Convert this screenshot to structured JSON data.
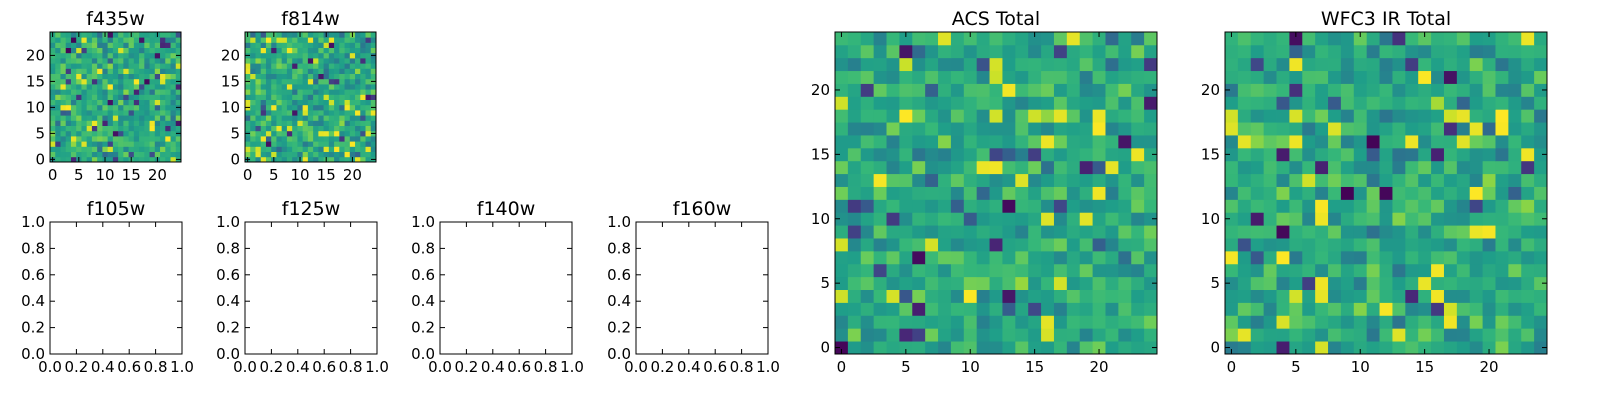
{
  "chart_data": [
    {
      "id": "f435w",
      "type": "heatmap",
      "title": "f435w",
      "size": 25,
      "xlim": [
        -0.5,
        24.5
      ],
      "ylim": [
        -0.5,
        24.5
      ],
      "xticks": [
        0,
        5,
        10,
        15,
        20
      ],
      "yticks": [
        0,
        5,
        10,
        15,
        20
      ],
      "colormap": "viridis",
      "seed": 11,
      "has_image": true
    },
    {
      "id": "f814w",
      "type": "heatmap",
      "title": "f814w",
      "size": 25,
      "xlim": [
        -0.5,
        24.5
      ],
      "ylim": [
        -0.5,
        24.5
      ],
      "xticks": [
        0,
        5,
        10,
        15,
        20
      ],
      "yticks": [
        0,
        5,
        10,
        15,
        20
      ],
      "colormap": "viridis",
      "seed": 23,
      "has_image": true
    },
    {
      "id": "f105w",
      "type": "heatmap",
      "title": "f105w",
      "xlim": [
        0,
        1
      ],
      "ylim": [
        0,
        1
      ],
      "xticks": [
        "0.0",
        "0.2",
        "0.4",
        "0.6",
        "0.8",
        "1.0"
      ],
      "yticks": [
        "0.0",
        "0.2",
        "0.4",
        "0.6",
        "0.8",
        "1.0"
      ],
      "has_image": false
    },
    {
      "id": "f125w",
      "type": "heatmap",
      "title": "f125w",
      "xlim": [
        0,
        1
      ],
      "ylim": [
        0,
        1
      ],
      "xticks": [
        "0.0",
        "0.2",
        "0.4",
        "0.6",
        "0.8",
        "1.0"
      ],
      "yticks": [
        "0.0",
        "0.2",
        "0.4",
        "0.6",
        "0.8",
        "1.0"
      ],
      "has_image": false
    },
    {
      "id": "f140w",
      "type": "heatmap",
      "title": "f140w",
      "xlim": [
        0,
        1
      ],
      "ylim": [
        0,
        1
      ],
      "xticks": [
        "0.0",
        "0.2",
        "0.4",
        "0.6",
        "0.8",
        "1.0"
      ],
      "yticks": [
        "0.0",
        "0.2",
        "0.4",
        "0.6",
        "0.8",
        "1.0"
      ],
      "has_image": false
    },
    {
      "id": "f160w",
      "type": "heatmap",
      "title": "f160w",
      "xlim": [
        0,
        1
      ],
      "ylim": [
        0,
        1
      ],
      "xticks": [
        "0.0",
        "0.2",
        "0.4",
        "0.6",
        "0.8",
        "1.0"
      ],
      "yticks": [
        "0.0",
        "0.2",
        "0.4",
        "0.6",
        "0.8",
        "1.0"
      ],
      "has_image": false
    },
    {
      "id": "acs-total",
      "type": "heatmap",
      "title": "ACS Total",
      "size": 25,
      "xlim": [
        -0.5,
        24.5
      ],
      "ylim": [
        -0.5,
        24.5
      ],
      "xticks": [
        0,
        5,
        10,
        15,
        20
      ],
      "yticks": [
        0,
        5,
        10,
        15,
        20
      ],
      "colormap": "viridis",
      "seed": 37,
      "has_image": true
    },
    {
      "id": "wfc3-ir-total",
      "type": "heatmap",
      "title": "WFC3 IR Total",
      "size": 25,
      "xlim": [
        -0.5,
        24.5
      ],
      "ylim": [
        -0.5,
        24.5
      ],
      "xticks": [
        0,
        5,
        10,
        15,
        20
      ],
      "yticks": [
        0,
        5,
        10,
        15,
        20
      ],
      "colormap": "viridis",
      "seed": 53,
      "has_image": true
    }
  ]
}
